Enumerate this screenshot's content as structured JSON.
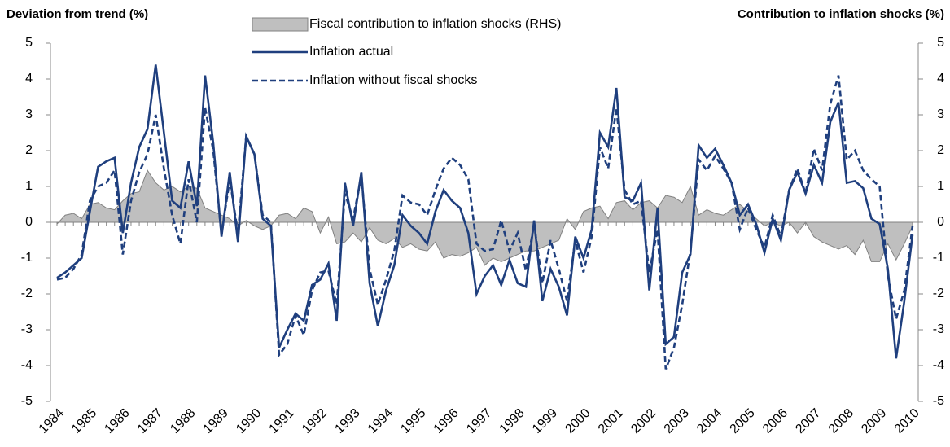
{
  "chart_data": {
    "type": "line",
    "y_label": "Deviation from trend (%)",
    "y2_label": "Contribution to inflation shocks (%)",
    "categories": [
      "1984",
      null,
      null,
      null,
      "1985",
      null,
      null,
      null,
      "1986",
      null,
      null,
      null,
      "1987",
      null,
      null,
      null,
      "1988",
      null,
      null,
      null,
      "1989",
      null,
      null,
      null,
      "1990",
      null,
      null,
      null,
      "1991",
      null,
      null,
      null,
      "1992",
      null,
      null,
      null,
      "1993",
      null,
      null,
      null,
      "1994",
      null,
      null,
      null,
      "1995",
      null,
      null,
      null,
      "1996",
      null,
      null,
      null,
      "1997",
      null,
      null,
      null,
      "1998",
      null,
      null,
      null,
      "1999",
      null,
      null,
      null,
      "2000",
      null,
      null,
      null,
      "2001",
      null,
      null,
      null,
      "2002",
      null,
      null,
      null,
      "2003",
      null,
      null,
      null,
      "2004",
      null,
      null,
      null,
      "2005",
      null,
      null,
      null,
      "2006",
      null,
      null,
      null,
      "2007",
      null,
      null,
      null,
      "2008",
      null,
      null,
      null,
      "2009",
      null,
      null,
      null,
      "2010"
    ],
    "series": [
      {
        "name": "Fiscal contribution to inflation shocks (RHS)",
        "type": "area",
        "axis": "y2",
        "color": "#bfbfbf",
        "line_color": "#808080",
        "values": [
          -0.05,
          0.2,
          0.25,
          0.1,
          0.5,
          0.55,
          0.4,
          0.35,
          0.6,
          0.8,
          0.85,
          1.45,
          1.1,
          0.9,
          1.0,
          0.85,
          1.0,
          0.95,
          0.4,
          0.3,
          0.2,
          0.1,
          -0.1,
          0.05,
          -0.1,
          -0.2,
          -0.1,
          0.2,
          0.25,
          0.1,
          0.4,
          0.3,
          -0.3,
          0.15,
          -0.6,
          -0.55,
          -0.3,
          -0.55,
          -0.15,
          -0.5,
          -0.6,
          -0.45,
          -0.7,
          -0.6,
          -0.75,
          -0.8,
          -0.55,
          -1.0,
          -0.9,
          -0.95,
          -0.85,
          -0.7,
          -1.2,
          -1.0,
          -1.1,
          -1.0,
          -0.9,
          -0.8,
          -0.8,
          -0.7,
          -0.6,
          -0.5,
          0.1,
          -0.2,
          0.3,
          0.4,
          0.45,
          0.1,
          0.55,
          0.6,
          0.35,
          0.55,
          0.6,
          0.4,
          0.75,
          0.7,
          0.55,
          1.0,
          0.2,
          0.35,
          0.25,
          0.2,
          0.35,
          0.5,
          0.3,
          0.1,
          -0.1,
          0.0,
          -0.1,
          0.0,
          -0.3,
          0.0,
          -0.4,
          -0.55,
          -0.65,
          -0.75,
          -0.65,
          -0.9,
          -0.5,
          -1.1,
          -1.1,
          -0.6,
          -1.05,
          -0.6,
          -0.1
        ]
      },
      {
        "name": "Inflation actual",
        "type": "line",
        "dashed": false,
        "color": "#1f3f7e",
        "values": [
          -1.55,
          -1.4,
          -1.2,
          -1.0,
          0.3,
          1.55,
          1.7,
          1.8,
          -0.3,
          1.1,
          2.1,
          2.6,
          4.4,
          2.5,
          0.6,
          0.4,
          1.7,
          0.45,
          4.1,
          2.2,
          -0.4,
          1.4,
          -0.55,
          2.4,
          1.9,
          0.1,
          -0.1,
          -3.5,
          -3.0,
          -2.55,
          -2.75,
          -1.75,
          -1.6,
          -1.15,
          -2.75,
          1.1,
          -0.1,
          1.4,
          -1.7,
          -2.9,
          -1.9,
          -1.2,
          0.2,
          -0.1,
          -0.3,
          -0.6,
          0.3,
          0.9,
          0.6,
          0.4,
          -0.3,
          -2.0,
          -1.5,
          -1.2,
          -1.75,
          -1.05,
          -1.7,
          -1.8,
          0.05,
          -2.2,
          -1.3,
          -1.8,
          -2.6,
          -0.4,
          -1.0,
          -0.2,
          2.5,
          2.1,
          3.75,
          0.7,
          0.6,
          1.1,
          -1.9,
          0.4,
          -3.4,
          -3.2,
          -1.4,
          -0.9,
          2.15,
          1.8,
          2.05,
          1.6,
          1.1,
          0.2,
          0.5,
          -0.05,
          -0.85,
          0.1,
          -0.5,
          0.9,
          1.4,
          0.8,
          1.6,
          1.1,
          2.8,
          3.35,
          1.1,
          1.15,
          0.95,
          0.1,
          -0.05,
          -1.3,
          -3.8,
          -2.2,
          -0.35
        ]
      },
      {
        "name": "Inflation without fiscal shocks",
        "type": "line",
        "dashed": true,
        "color": "#1f3f7e",
        "values": [
          -1.6,
          -1.55,
          -1.3,
          -0.9,
          0.6,
          1.0,
          1.1,
          1.45,
          -0.9,
          0.6,
          1.4,
          1.9,
          3.0,
          1.5,
          0.2,
          -0.6,
          1.2,
          0.0,
          3.2,
          2.0,
          -0.35,
          1.2,
          -0.3,
          2.4,
          1.9,
          0.2,
          0.0,
          -3.7,
          -3.4,
          -2.6,
          -3.15,
          -1.9,
          -1.4,
          -1.35,
          -2.3,
          0.8,
          0.1,
          1.3,
          -1.3,
          -2.3,
          -1.6,
          -0.8,
          0.75,
          0.55,
          0.5,
          0.2,
          0.9,
          1.5,
          1.8,
          1.6,
          1.2,
          -0.6,
          -0.8,
          -0.75,
          0.05,
          -0.8,
          -0.3,
          -1.35,
          -0.05,
          -1.7,
          -0.5,
          -1.3,
          -2.2,
          -0.5,
          -1.4,
          -0.4,
          2.1,
          1.5,
          3.2,
          0.9,
          0.5,
          0.6,
          -1.4,
          -0.2,
          -4.1,
          -3.5,
          -2.3,
          -0.8,
          1.75,
          1.45,
          1.85,
          1.5,
          1.1,
          -0.2,
          0.4,
          -0.2,
          -0.7,
          0.2,
          -0.4,
          0.9,
          1.5,
          0.8,
          2.05,
          1.45,
          3.3,
          4.1,
          1.75,
          2.0,
          1.45,
          1.2,
          1.0,
          -1.5,
          -2.7,
          -1.9,
          -0.1
        ]
      }
    ],
    "ylim": [
      -5,
      5
    ],
    "yticks": [
      -5,
      -4,
      -3,
      -2,
      -1,
      0,
      1,
      2,
      3,
      4,
      5
    ],
    "y2lim": [
      -5,
      5
    ],
    "y2ticks": [
      -5,
      -4,
      -3,
      -2,
      -1,
      0,
      1,
      2,
      3,
      4,
      5
    ],
    "legend": "top"
  }
}
